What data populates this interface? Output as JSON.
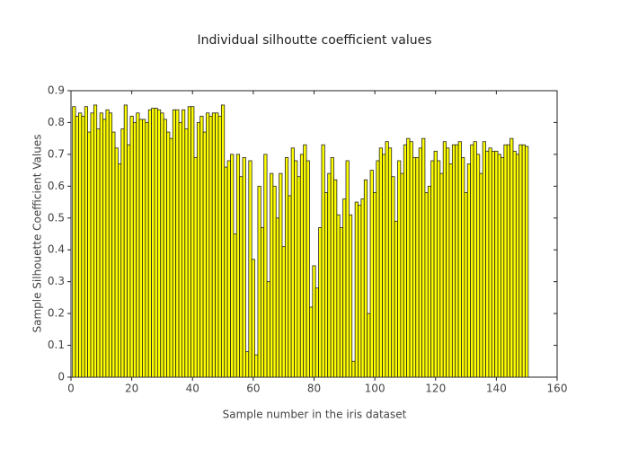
{
  "chart_data": {
    "type": "bar",
    "title": "Individual silhoutte coefficient values",
    "xlabel": "Sample number in the iris dataset",
    "ylabel": "Sample Silhouette Coefficient Values",
    "x": [
      1,
      2,
      3,
      4,
      5,
      6,
      7,
      8,
      9,
      10,
      11,
      12,
      13,
      14,
      15,
      16,
      17,
      18,
      19,
      20,
      21,
      22,
      23,
      24,
      25,
      26,
      27,
      28,
      29,
      30,
      31,
      32,
      33,
      34,
      35,
      36,
      37,
      38,
      39,
      40,
      41,
      42,
      43,
      44,
      45,
      46,
      47,
      48,
      49,
      50,
      51,
      52,
      53,
      54,
      55,
      56,
      57,
      58,
      59,
      60,
      61,
      62,
      63,
      64,
      65,
      66,
      67,
      68,
      69,
      70,
      71,
      72,
      73,
      74,
      75,
      76,
      77,
      78,
      79,
      80,
      81,
      82,
      83,
      84,
      85,
      86,
      87,
      88,
      89,
      90,
      91,
      92,
      93,
      94,
      95,
      96,
      97,
      98,
      99,
      100,
      101,
      102,
      103,
      104,
      105,
      106,
      107,
      108,
      109,
      110,
      111,
      112,
      113,
      114,
      115,
      116,
      117,
      118,
      119,
      120,
      121,
      122,
      123,
      124,
      125,
      126,
      127,
      128,
      129,
      130,
      131,
      132,
      133,
      134,
      135,
      136,
      137,
      138,
      139,
      140,
      141,
      142,
      143,
      144,
      145,
      146,
      147,
      148,
      149,
      150
    ],
    "values": [
      0.85,
      0.82,
      0.83,
      0.82,
      0.85,
      0.77,
      0.83,
      0.855,
      0.78,
      0.83,
      0.81,
      0.84,
      0.83,
      0.77,
      0.72,
      0.67,
      0.78,
      0.855,
      0.73,
      0.82,
      0.8,
      0.83,
      0.81,
      0.81,
      0.8,
      0.84,
      0.845,
      0.845,
      0.84,
      0.83,
      0.81,
      0.77,
      0.75,
      0.84,
      0.84,
      0.8,
      0.84,
      0.78,
      0.85,
      0.85,
      0.69,
      0.8,
      0.82,
      0.77,
      0.83,
      0.82,
      0.83,
      0.83,
      0.82,
      0.855,
      0.66,
      0.68,
      0.7,
      0.45,
      0.7,
      0.63,
      0.69,
      0.08,
      0.68,
      0.37,
      0.07,
      0.6,
      0.47,
      0.7,
      0.3,
      0.64,
      0.6,
      0.5,
      0.64,
      0.41,
      0.69,
      0.57,
      0.72,
      0.68,
      0.63,
      0.7,
      0.73,
      0.68,
      0.22,
      0.35,
      0.28,
      0.47,
      0.73,
      0.58,
      0.64,
      0.69,
      0.62,
      0.51,
      0.47,
      0.56,
      0.68,
      0.51,
      0.05,
      0.55,
      0.54,
      0.56,
      0.62,
      0.2,
      0.65,
      0.58,
      0.68,
      0.72,
      0.7,
      0.74,
      0.72,
      0.63,
      0.49,
      0.68,
      0.64,
      0.73,
      0.75,
      0.74,
      0.69,
      0.69,
      0.72,
      0.75,
      0.58,
      0.6,
      0.68,
      0.71,
      0.68,
      0.64,
      0.74,
      0.72,
      0.67,
      0.73,
      0.73,
      0.74,
      0.69,
      0.58,
      0.67,
      0.73,
      0.74,
      0.7,
      0.64,
      0.74,
      0.71,
      0.72,
      0.71,
      0.71,
      0.7,
      0.69,
      0.73,
      0.73,
      0.75,
      0.71,
      0.7,
      0.73,
      0.73,
      0.725
    ],
    "color": "#ffff00",
    "xlim": [
      0,
      160
    ],
    "xticks": [
      0,
      20,
      40,
      60,
      80,
      100,
      120,
      140,
      160
    ],
    "ylim": [
      0,
      0.9
    ],
    "yticks": [
      0,
      0.1,
      0.2,
      0.3,
      0.4,
      0.5,
      0.6,
      0.7,
      0.8,
      0.9
    ]
  }
}
